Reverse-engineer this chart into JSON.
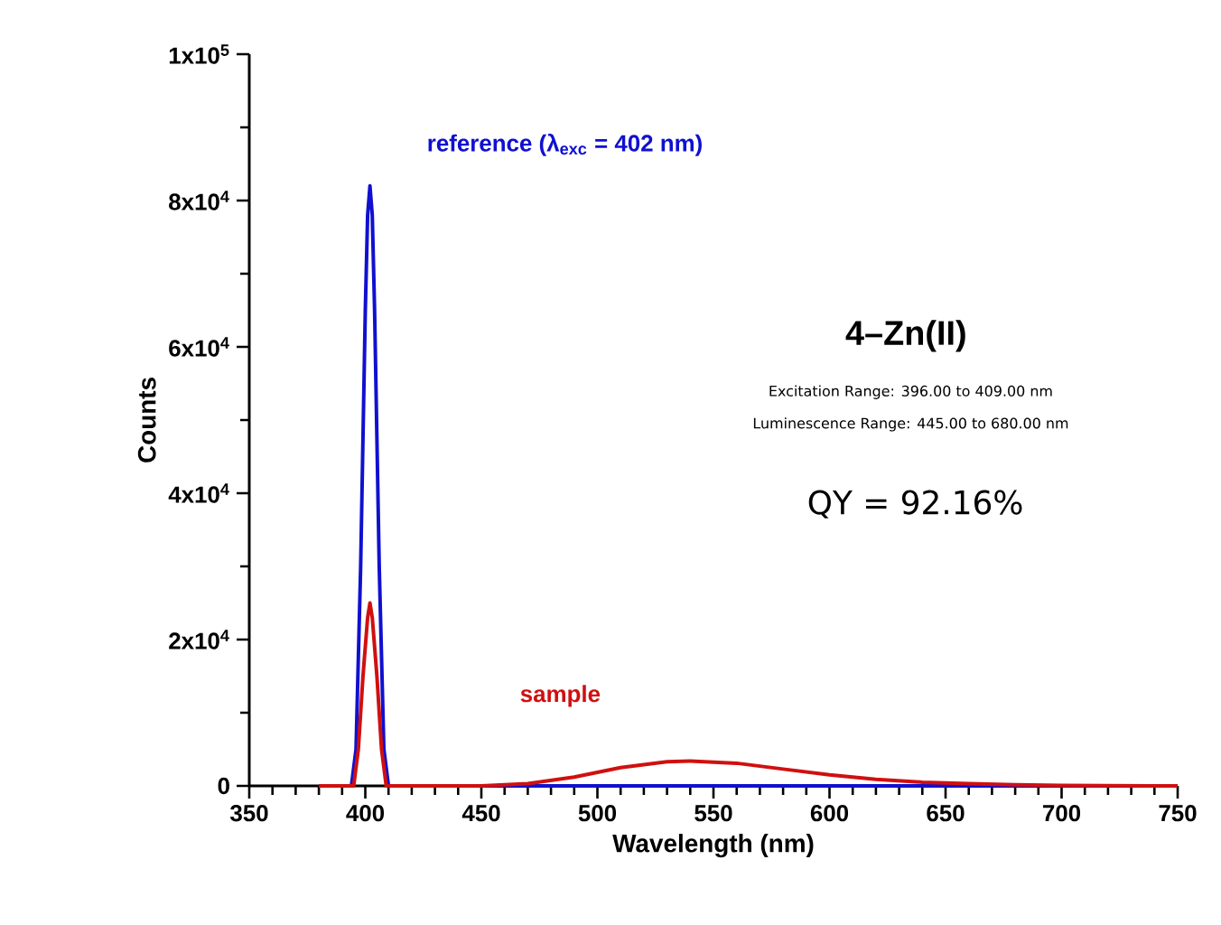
{
  "chart_data": {
    "type": "line",
    "xlabel": "Wavelength (nm)",
    "ylabel": "Counts",
    "xlim": [
      350,
      750
    ],
    "xticks": [
      350,
      400,
      450,
      500,
      550,
      600,
      650,
      700,
      750
    ],
    "ylim": [
      0,
      100000
    ],
    "yticks": [
      {
        "value": 0,
        "label": "0"
      },
      {
        "value": 20000,
        "label": "2x10$^{4}$"
      },
      {
        "value": 40000,
        "label": "4x10$^{4}$"
      },
      {
        "value": 60000,
        "label": "6x10$^{4}$"
      },
      {
        "value": 80000,
        "label": "8x10$^{4}$"
      },
      {
        "value": 100000,
        "label": "1x10$^{5}$"
      }
    ],
    "grid": false,
    "legend": false,
    "marker": "none",
    "line_style": "solid",
    "series": [
      {
        "name": "reference (λ$_{exc}$ = 402 nm)",
        "color": "#1010d0",
        "x": [
          380,
          394,
          396,
          398,
          400,
          401,
          402,
          403,
          404,
          406,
          408,
          410,
          420,
          750
        ],
        "values": [
          0,
          0,
          5000,
          30000,
          65000,
          78000,
          82000,
          78000,
          65000,
          30000,
          5000,
          0,
          0,
          0
        ]
      },
      {
        "name": "sample",
        "color": "#d01010",
        "x": [
          380,
          395,
          397,
          399,
          401,
          402,
          403,
          405,
          407,
          409,
          450,
          470,
          490,
          510,
          530,
          540,
          560,
          580,
          600,
          620,
          640,
          660,
          680,
          700,
          750
        ],
        "values": [
          0,
          0,
          5000,
          15000,
          23000,
          25000,
          23000,
          15000,
          5000,
          0,
          0,
          300,
          1200,
          2500,
          3300,
          3400,
          3100,
          2300,
          1500,
          900,
          500,
          300,
          150,
          50,
          0
        ]
      }
    ],
    "annotations": [
      "4–Zn(II)",
      "Excitation Range: 396.00 to 409.00 nm",
      "Luminescence Range: 445.00 to 680.00 nm",
      "QY = 92.16%"
    ]
  }
}
